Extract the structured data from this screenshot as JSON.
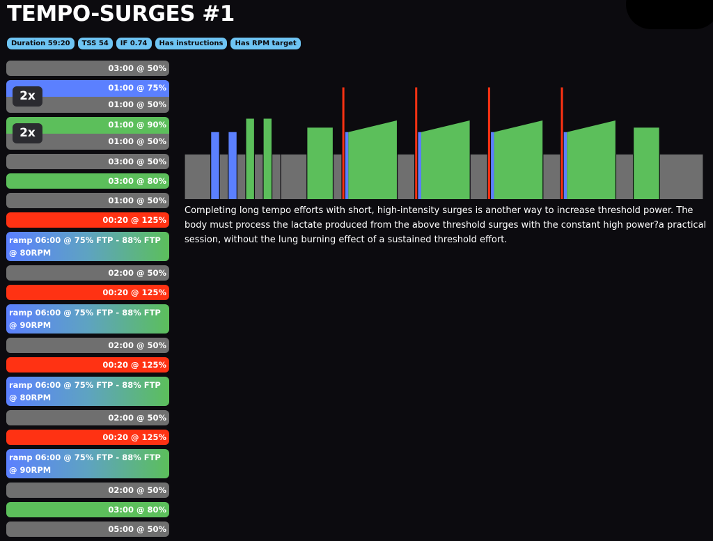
{
  "title": "TEMPO-SURGES #1",
  "badges": [
    "Duration 59:20",
    "TSS 54",
    "IF 0.74",
    "Has instructions",
    "Has RPM target"
  ],
  "steps": [
    {
      "kind": "single",
      "zone": "gray",
      "label": "03:00 @ 50%"
    },
    {
      "kind": "repeat",
      "repeat": "2x",
      "on": {
        "zone": "blue",
        "label": "01:00 @ 75%"
      },
      "off": {
        "zone": "gray",
        "label": "01:00 @ 50%"
      }
    },
    {
      "kind": "repeat",
      "repeat": "2x",
      "on": {
        "zone": "green",
        "label": "01:00 @ 90%"
      },
      "off": {
        "zone": "gray",
        "label": "01:00 @ 50%"
      }
    },
    {
      "kind": "single",
      "zone": "gray",
      "label": "03:00 @ 50%"
    },
    {
      "kind": "single",
      "zone": "green",
      "label": "03:00 @ 80%"
    },
    {
      "kind": "single",
      "zone": "gray",
      "label": "01:00 @ 50%"
    },
    {
      "kind": "single",
      "zone": "red",
      "label": "00:20 @ 125%"
    },
    {
      "kind": "ramp",
      "label": "ramp 06:00 @ 75% FTP - 88% FTP @ 80RPM"
    },
    {
      "kind": "single",
      "zone": "gray",
      "label": "02:00 @ 50%"
    },
    {
      "kind": "single",
      "zone": "red",
      "label": "00:20 @ 125%"
    },
    {
      "kind": "ramp",
      "label": "ramp 06:00 @ 75% FTP - 88% FTP @ 90RPM"
    },
    {
      "kind": "single",
      "zone": "gray",
      "label": "02:00 @ 50%"
    },
    {
      "kind": "single",
      "zone": "red",
      "label": "00:20 @ 125%"
    },
    {
      "kind": "ramp",
      "label": "ramp 06:00 @ 75% FTP - 88% FTP @ 80RPM"
    },
    {
      "kind": "single",
      "zone": "gray",
      "label": "02:00 @ 50%"
    },
    {
      "kind": "single",
      "zone": "red",
      "label": "00:20 @ 125%"
    },
    {
      "kind": "ramp",
      "label": "ramp 06:00 @ 75% FTP - 88% FTP @ 90RPM"
    },
    {
      "kind": "single",
      "zone": "gray",
      "label": "02:00 @ 50%"
    },
    {
      "kind": "single",
      "zone": "green",
      "label": "03:00 @ 80%"
    },
    {
      "kind": "single",
      "zone": "gray",
      "label": "05:00 @ 50%"
    }
  ],
  "description": "Completing long tempo efforts with short, high-intensity surges is another way to increase threshold power. The body must process the lactate produced from the above threshold surges with the constant high power?a practical session, without the lung burning effect of a sustained threshold effort.",
  "colors": {
    "gray": "#6f6f6f",
    "blue": "#5b80ff",
    "green": "#5cbf5b",
    "red": "#ff3213",
    "badge": "#6ec4f3"
  }
}
